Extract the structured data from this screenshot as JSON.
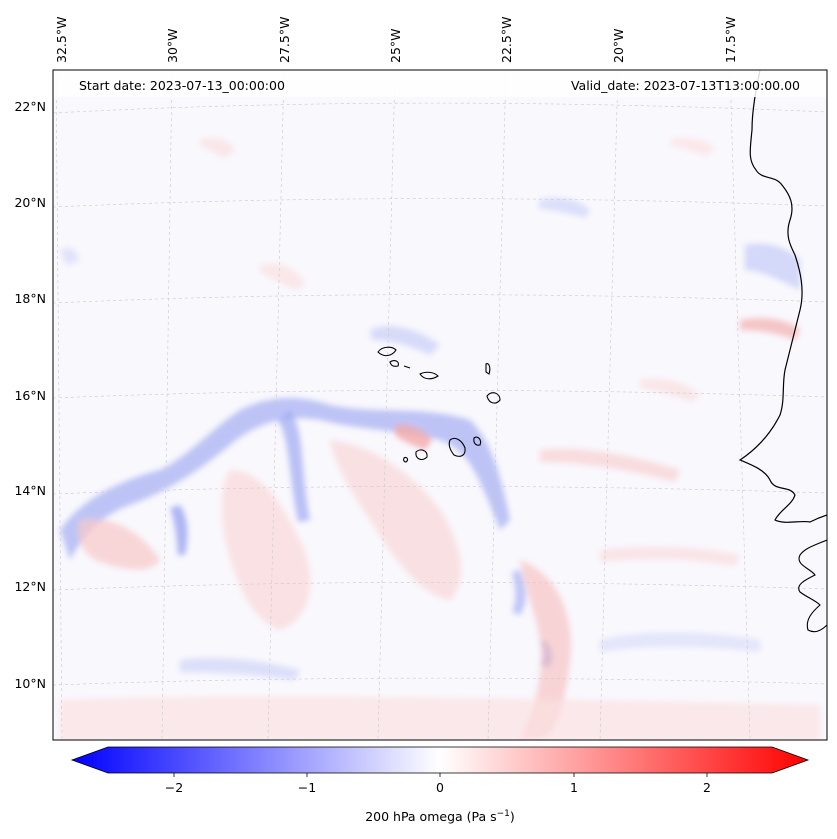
{
  "map": {
    "start_date_label": "Start date: 2023-07-13_00:00:00",
    "valid_date_label": "Valid_date: 2023-07-13T13:00:00.00",
    "lon_ticks": [
      "32.5°W",
      "30°W",
      "27.5°W",
      "25°W",
      "22.5°W",
      "20°W",
      "17.5°W"
    ],
    "lat_ticks": [
      "22°N",
      "20°N",
      "18°N",
      "16°N",
      "14°N",
      "12°N",
      "10°N"
    ],
    "gridlines": true
  },
  "colorbar": {
    "label_main": "200 hPa omega (Pa s",
    "label_sup": "−1",
    "label_close": ")",
    "ticks": [
      "−2",
      "−1",
      "0",
      "1",
      "2"
    ],
    "range": [
      -2.6,
      2.6
    ],
    "min_color": "#0000ff",
    "mid_color": "#ffffff",
    "max_color": "#ff0000"
  }
}
